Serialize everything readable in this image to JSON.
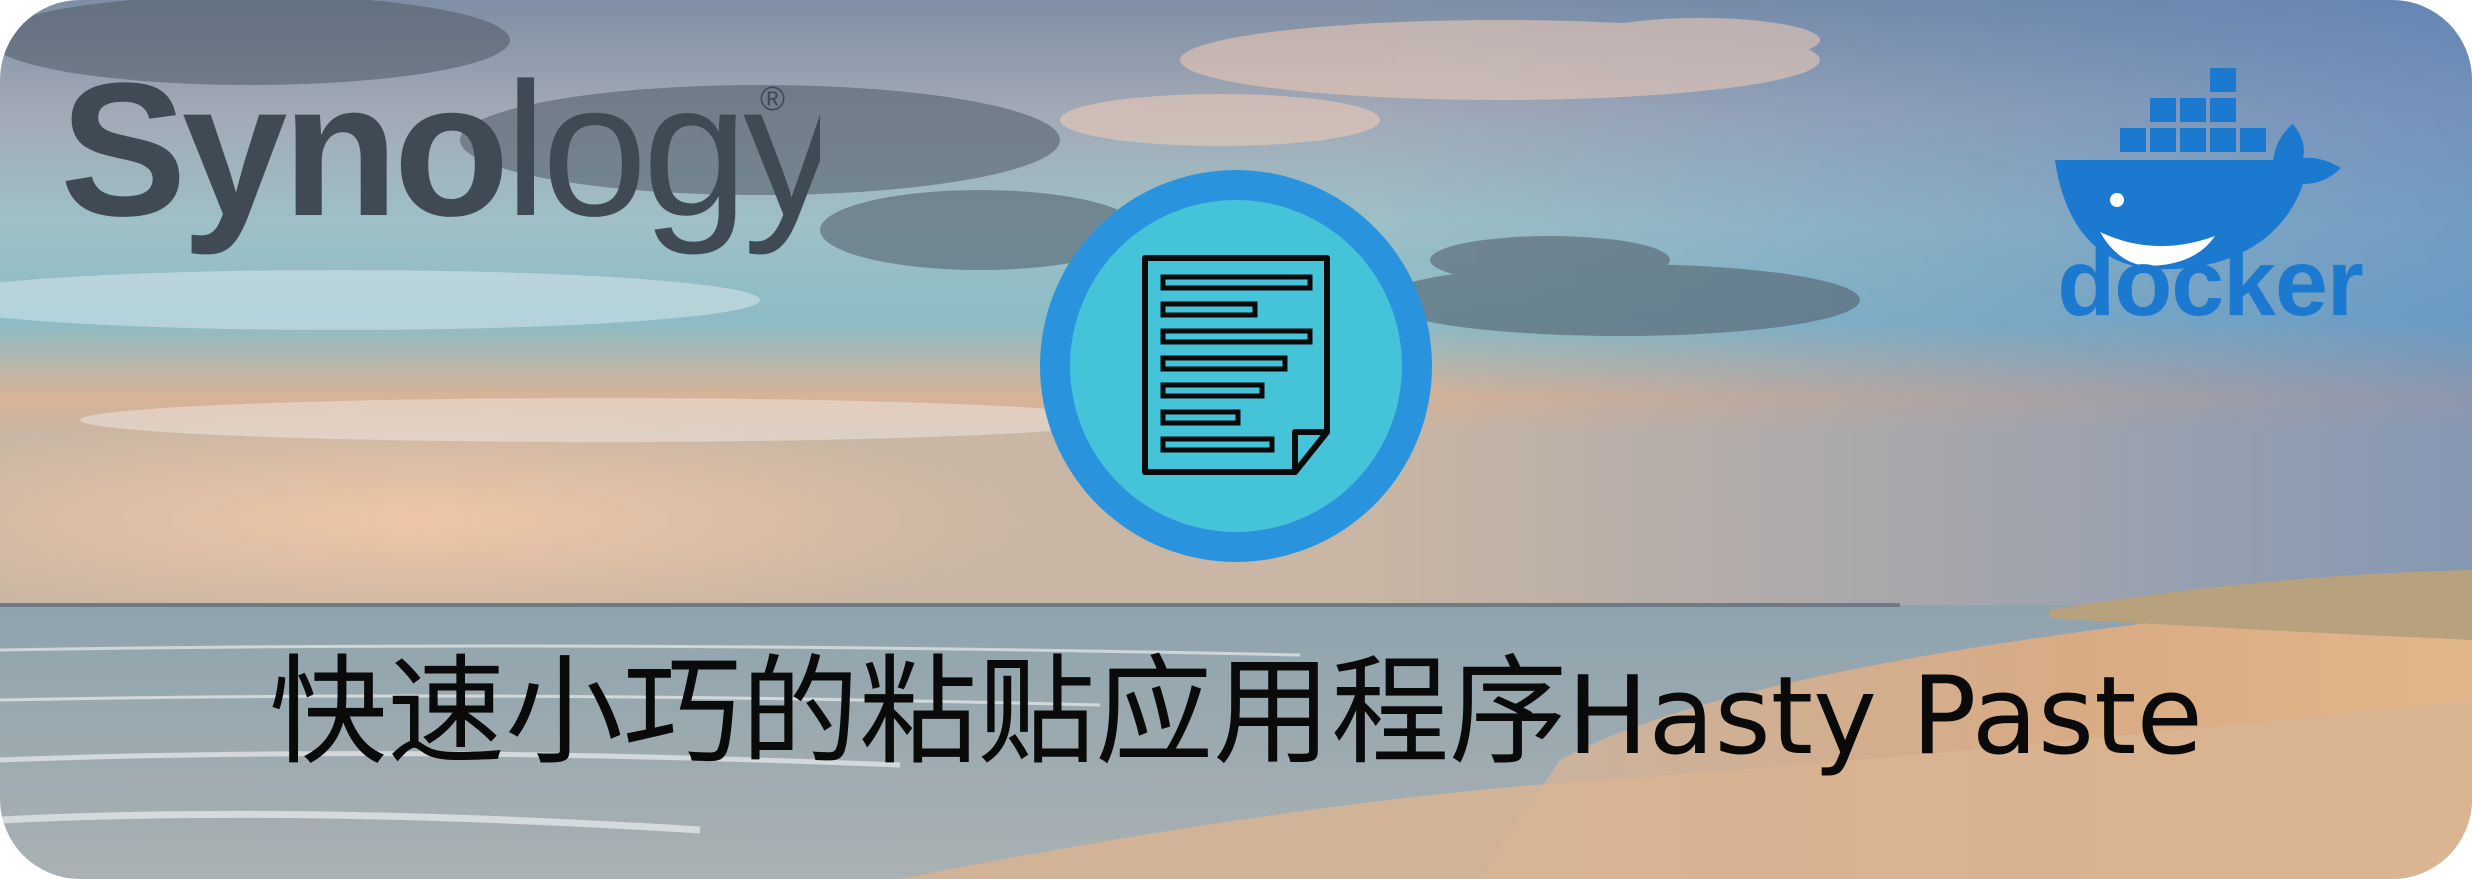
{
  "banner": {
    "synology_logo": {
      "prefix": "Syno",
      "suffix": "logy",
      "registered_mark": "®"
    },
    "docker_logo": {
      "wordmark": "docker",
      "color": "#1b7ad0"
    },
    "app_icon": {
      "name": "document-icon",
      "outer_color": "#2a93de",
      "inner_color": "#45c3d9"
    },
    "caption": {
      "chinese": "快速小巧的粘贴应用程序",
      "english": "Hasty Paste"
    }
  }
}
